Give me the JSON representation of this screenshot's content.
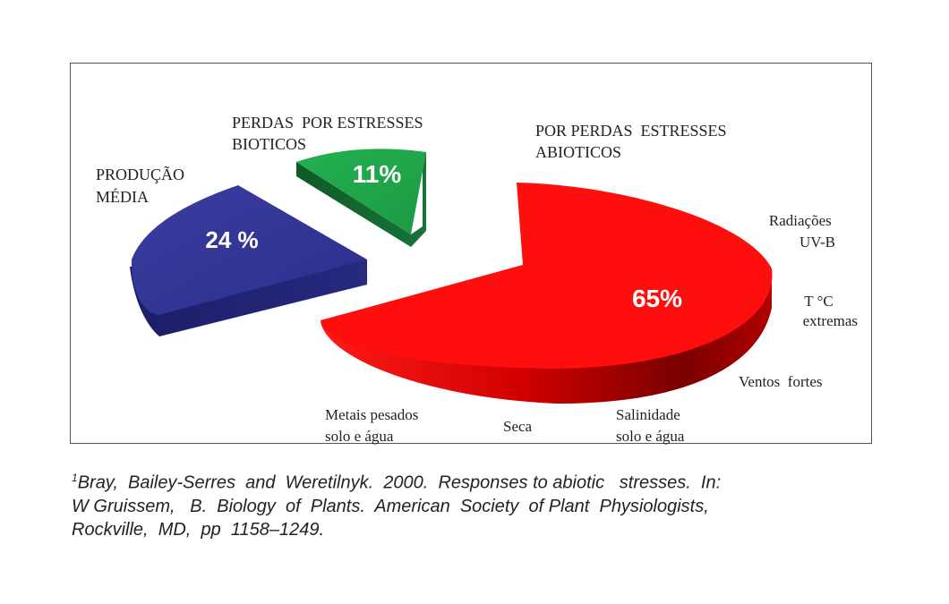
{
  "chart_data": {
    "type": "pie",
    "style": "3d-exploded",
    "slices": [
      {
        "label_lines": [
          "PRODUÇÃO",
          "MÉDIA"
        ],
        "value": 24,
        "value_label": "24 %",
        "color": "#2E3192"
      },
      {
        "label_lines": [
          "PERDAS  POR ESTRESSES",
          "BIOTICOS"
        ],
        "value": 11,
        "value_label": "11%",
        "color": "#21A048"
      },
      {
        "label_lines": [
          "POR PERDAS  ESTRESSES",
          "ABIOTICOS"
        ],
        "value": 65,
        "value_label": "65%",
        "color": "#FF1010"
      }
    ],
    "annotations": [
      {
        "lines": [
          "Radiações",
          "UV-B"
        ]
      },
      {
        "lines": [
          "T °C",
          "extremas"
        ]
      },
      {
        "lines": [
          "Ventos  fortes"
        ]
      },
      {
        "lines": [
          "Salinidade",
          "solo e água"
        ]
      },
      {
        "lines": [
          "Seca"
        ]
      },
      {
        "lines": [
          "Metais pesados",
          "solo e água"
        ]
      }
    ]
  },
  "citation": {
    "sup": "1",
    "lines": [
      "Bray,  Bailey-Serres  and  Weretilnyk.  2000.  Responses to abiotic   stresses.  In:",
      "W Gruissem,   B.  Biology  of  Plants.  American  Society  of Plant  Physiologists,",
      "Rockville,  MD,  pp  1158–1249."
    ]
  }
}
